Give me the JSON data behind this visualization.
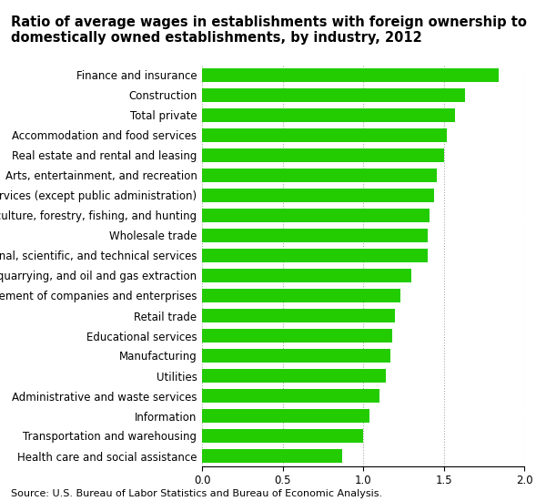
{
  "title_line1": "Ratio of average wages in establishments with foreign ownership to",
  "title_line2": "domestically owned establishments, by industry, 2012",
  "categories": [
    "Health care and social assistance",
    "Transportation and warehousing",
    "Information",
    "Administrative and waste services",
    "Utilities",
    "Manufacturing",
    "Educational services",
    "Retail trade",
    "Management of companies and enterprises",
    "Mining, quarrying, and oil and gas extraction",
    "Professional, scientific, and technical services",
    "Wholesale trade",
    "Agriculture, forestry, fishing, and hunting",
    "Other services (except public administration)",
    "Arts, entertainment, and recreation",
    "Real estate and rental and leasing",
    "Accommodation and food services",
    "Total private",
    "Construction",
    "Finance and insurance"
  ],
  "values": [
    0.87,
    1.0,
    1.04,
    1.1,
    1.14,
    1.17,
    1.18,
    1.2,
    1.23,
    1.3,
    1.4,
    1.4,
    1.41,
    1.44,
    1.46,
    1.5,
    1.52,
    1.57,
    1.63,
    1.84
  ],
  "bar_color": "#22cc00",
  "background_color": "#ffffff",
  "xlim": [
    0.0,
    2.0
  ],
  "xticks": [
    0.0,
    0.5,
    1.0,
    1.5,
    2.0
  ],
  "source_text": "Source: U.S. Bureau of Labor Statistics and Bureau of Economic Analysis.",
  "title_fontsize": 10.5,
  "tick_fontsize": 8.5,
  "source_fontsize": 8
}
